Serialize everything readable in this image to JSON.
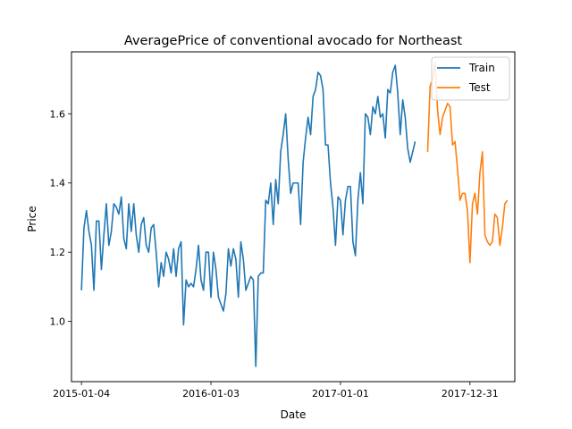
{
  "chart_data": {
    "type": "line",
    "title": "AveragePrice of conventional avocado for Northeast",
    "xlabel": "Date",
    "ylabel": "Price",
    "x_ticks": [
      "2015-01-04",
      "2016-01-03",
      "2017-01-01",
      "2017-12-31"
    ],
    "y_ticks": [
      "1.0",
      "1.2",
      "1.4",
      "1.6"
    ],
    "xlim": [
      -4,
      174
    ],
    "ylim": [
      0.826,
      1.779
    ],
    "grid": false,
    "legend_position": "top-right",
    "series": [
      {
        "name": "Train",
        "color": "#1f77b4",
        "start_week": 0,
        "values": [
          1.09,
          1.27,
          1.32,
          1.26,
          1.22,
          1.09,
          1.29,
          1.29,
          1.15,
          1.25,
          1.34,
          1.22,
          1.26,
          1.34,
          1.33,
          1.31,
          1.36,
          1.24,
          1.21,
          1.34,
          1.26,
          1.34,
          1.25,
          1.2,
          1.28,
          1.3,
          1.22,
          1.2,
          1.27,
          1.28,
          1.2,
          1.1,
          1.17,
          1.13,
          1.2,
          1.18,
          1.14,
          1.21,
          1.13,
          1.21,
          1.23,
          0.99,
          1.12,
          1.1,
          1.11,
          1.1,
          1.15,
          1.22,
          1.12,
          1.09,
          1.2,
          1.2,
          1.07,
          1.2,
          1.15,
          1.07,
          1.05,
          1.03,
          1.08,
          1.21,
          1.16,
          1.21,
          1.18,
          1.07,
          1.23,
          1.18,
          1.09,
          1.11,
          1.13,
          1.12,
          0.87,
          1.13,
          1.14,
          1.14,
          1.35,
          1.34,
          1.4,
          1.28,
          1.41,
          1.34,
          1.49,
          1.54,
          1.6,
          1.47,
          1.37,
          1.4,
          1.4,
          1.4,
          1.28,
          1.46,
          1.53,
          1.59,
          1.54,
          1.65,
          1.67,
          1.72,
          1.71,
          1.67,
          1.51,
          1.51,
          1.4,
          1.33,
          1.22,
          1.36,
          1.35,
          1.25,
          1.35,
          1.39,
          1.39,
          1.23,
          1.19,
          1.35,
          1.43,
          1.34,
          1.6,
          1.59,
          1.54,
          1.62,
          1.6,
          1.65,
          1.59,
          1.6,
          1.53,
          1.67,
          1.66,
          1.72,
          1.74,
          1.66,
          1.54,
          1.64,
          1.59,
          1.5,
          1.46,
          1.49,
          1.52
        ]
      },
      {
        "name": "Test",
        "color": "#ff7f0e",
        "start_week": 139,
        "values": [
          1.49,
          1.68,
          1.7,
          1.75,
          1.61,
          1.54,
          1.59,
          1.61,
          1.63,
          1.62,
          1.51,
          1.52,
          1.44,
          1.35,
          1.37,
          1.37,
          1.32,
          1.17,
          1.34,
          1.37,
          1.31,
          1.43,
          1.49,
          1.25,
          1.23,
          1.22,
          1.23,
          1.31,
          1.3,
          1.22,
          1.27,
          1.34,
          1.35
        ]
      }
    ]
  }
}
